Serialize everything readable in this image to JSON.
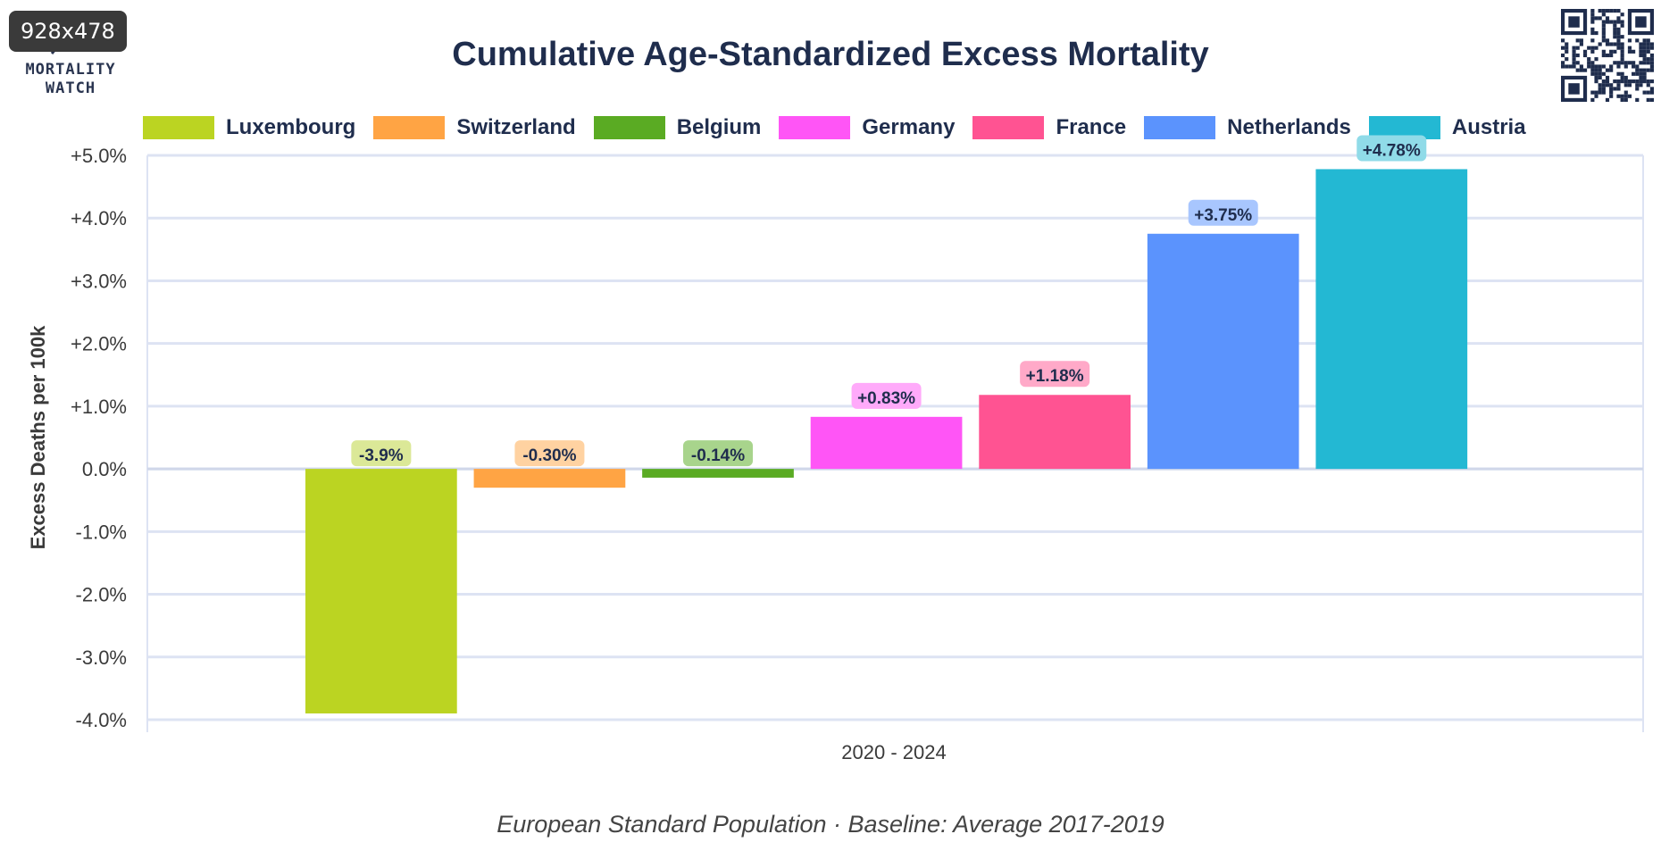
{
  "badge": "928x478",
  "logo": {
    "line1": "MORTALITY",
    "line2": "WATCH"
  },
  "title": "Cumulative Age-Standardized Excess Mortality",
  "subtitle": "European Standard Population · Baseline: Average 2017-2019",
  "chart_data": {
    "type": "bar",
    "title": "Cumulative Age-Standardized Excess Mortality",
    "ylabel": "Excess Deaths per 100k",
    "xlabel": "",
    "categories": [
      "2020 - 2024"
    ],
    "ylim": [
      -4.0,
      5.0
    ],
    "yticks": [
      5.0,
      4.0,
      3.0,
      2.0,
      1.0,
      0.0,
      -1.0,
      -2.0,
      -3.0,
      -4.0
    ],
    "ytick_labels": [
      "+5.0%",
      "+4.0%",
      "+3.0%",
      "+2.0%",
      "+1.0%",
      "0.0%",
      "-1.0%",
      "-2.0%",
      "-3.0%",
      "-4.0%"
    ],
    "grid": true,
    "legend_position": "top",
    "series": [
      {
        "name": "Luxembourg",
        "values": [
          -3.9
        ],
        "label": "-3.9%",
        "color": "#bbd422",
        "label_bg": "#dbe897"
      },
      {
        "name": "Switzerland",
        "values": [
          -0.3
        ],
        "label": "-0.30%",
        "color": "#ffa444",
        "label_bg": "#ffd2a1"
      },
      {
        "name": "Belgium",
        "values": [
          -0.14
        ],
        "label": "-0.14%",
        "color": "#5aab23",
        "label_bg": "#a8d48c"
      },
      {
        "name": "Germany",
        "values": [
          0.83
        ],
        "label": "+0.83%",
        "color": "#ff55f6",
        "label_bg": "#ffaafa"
      },
      {
        "name": "France",
        "values": [
          1.18
        ],
        "label": "+1.18%",
        "color": "#ff5392",
        "label_bg": "#ffa9c8"
      },
      {
        "name": "Netherlands",
        "values": [
          3.75
        ],
        "label": "+3.75%",
        "color": "#5b93fd",
        "label_bg": "#a8c6fe"
      },
      {
        "name": "Austria",
        "values": [
          4.78
        ],
        "label": "+4.78%",
        "color": "#23b8d3",
        "label_bg": "#90dbe8"
      }
    ]
  }
}
